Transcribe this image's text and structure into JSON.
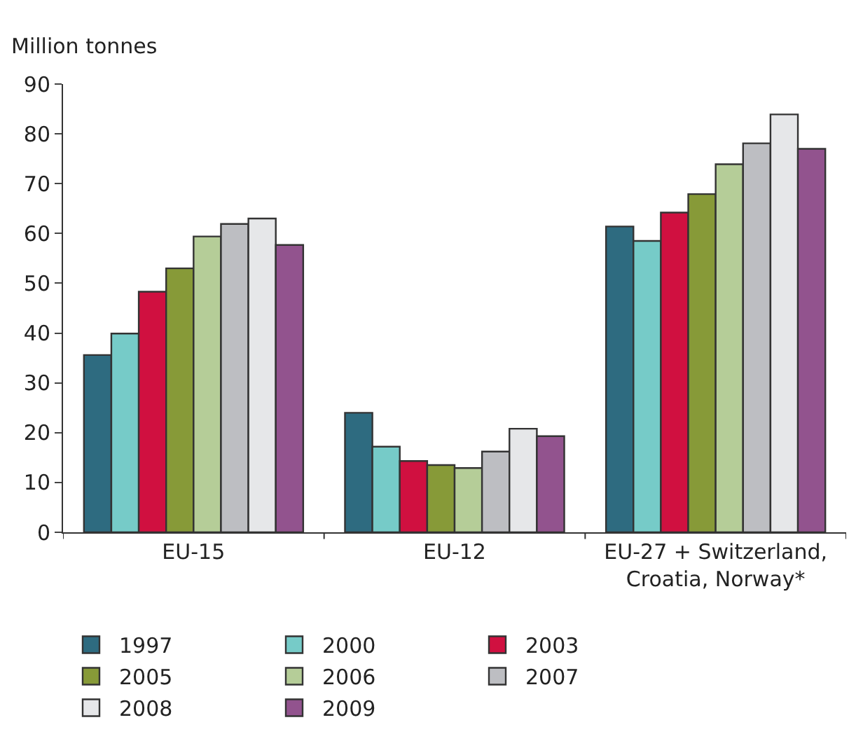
{
  "chart_data": {
    "type": "bar",
    "ylabel": "Million tonnes",
    "categories": [
      "EU-15",
      "EU-12",
      "EU-27 + Switzerland,\nCroatia, Norway*"
    ],
    "series": [
      {
        "name": "1997",
        "color": "#2e6b80",
        "values": [
          35.6,
          24.0,
          61.4
        ]
      },
      {
        "name": "2000",
        "color": "#76cbc8",
        "values": [
          39.9,
          17.2,
          58.5
        ]
      },
      {
        "name": "2003",
        "color": "#d01040",
        "values": [
          48.3,
          14.3,
          64.2
        ]
      },
      {
        "name": "2005",
        "color": "#879a38",
        "values": [
          53.0,
          13.5,
          67.9
        ]
      },
      {
        "name": "2006",
        "color": "#b5cd98",
        "values": [
          59.4,
          12.9,
          73.9
        ]
      },
      {
        "name": "2007",
        "color": "#bdbec2",
        "values": [
          61.9,
          16.2,
          78.1
        ]
      },
      {
        "name": "2008",
        "color": "#e6e7e9",
        "values": [
          63.0,
          20.8,
          83.9
        ]
      },
      {
        "name": "2009",
        "color": "#92538e",
        "values": [
          57.7,
          19.3,
          77.0
        ]
      }
    ],
    "ylim": [
      0,
      90
    ],
    "yticks": [
      0,
      10,
      20,
      30,
      40,
      50,
      60,
      70,
      80,
      90
    ],
    "grid": false,
    "legend": "bottom"
  }
}
